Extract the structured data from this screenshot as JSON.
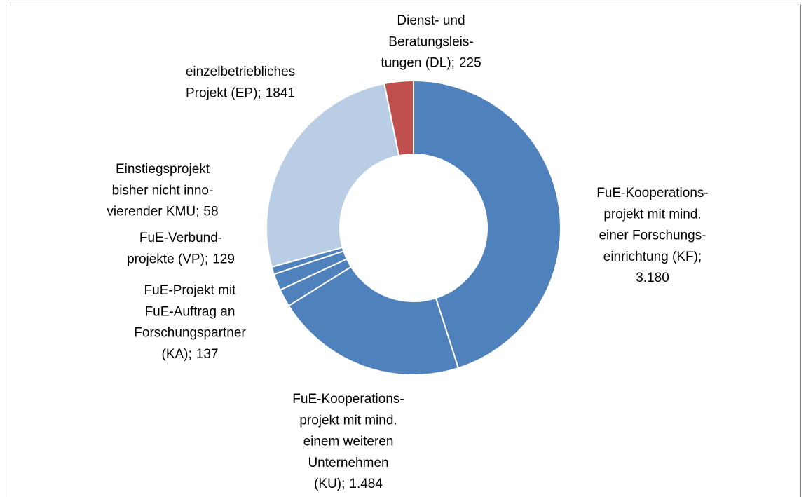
{
  "chart_data": {
    "type": "donut",
    "categories": [
      [
        "FuE-Kooperations-",
        "projekt mit mind.",
        "einer Forschungs-",
        "einrichtung (KF);"
      ],
      [
        "FuE-Kooperations-",
        "projekt mit mind.",
        "einem weiteren",
        "Unternehmen",
        "(KU);"
      ],
      [
        "FuE-Projekt mit",
        "FuE-Auftrag an",
        "Forschungspartner",
        "(KA);"
      ],
      [
        "FuE-Verbund-",
        "projekte (VP);"
      ],
      [
        "Einstiegsprojekt",
        "bisher nicht inno-",
        "vierender KMU;"
      ],
      [
        "einzelbetriebliches",
        "Projekt (EP);"
      ],
      [
        "Dienst- und",
        "Beratungsleis-",
        "tungen (DL);"
      ]
    ],
    "values": [
      3180,
      1484,
      137,
      129,
      58,
      1841,
      225
    ],
    "value_labels": [
      "3.180",
      "1.484",
      "137",
      "129",
      "58",
      "1841",
      "225"
    ],
    "colors": [
      "#4f81bd",
      "#4f81bd",
      "#4f81bd",
      "#4f81bd",
      "#4f81bd",
      "#b9cde5",
      "#c0504d"
    ]
  }
}
